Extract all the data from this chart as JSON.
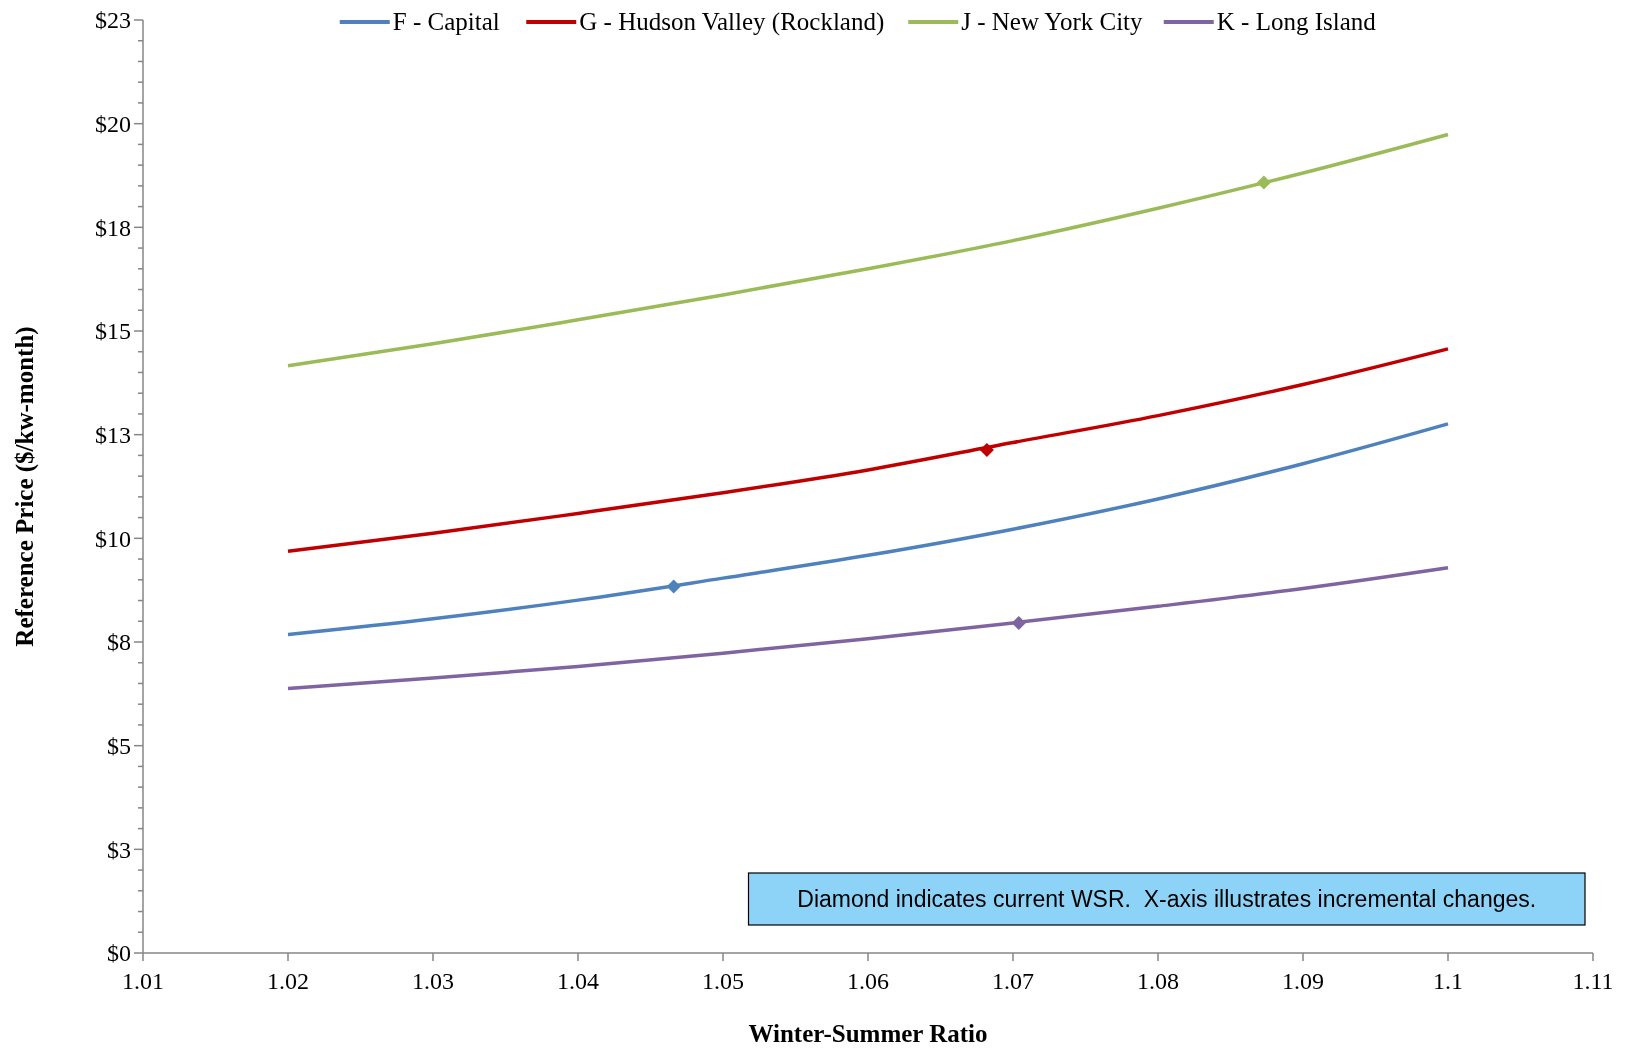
{
  "chart_data": {
    "type": "line",
    "xlabel": "Winter-Summer Ratio",
    "ylabel": "Reference Price ($/kw-month)",
    "x": [
      1.02,
      1.03,
      1.04,
      1.05,
      1.06,
      1.07,
      1.08,
      1.09,
      1.1
    ],
    "series": [
      {
        "name": "F - Capital",
        "color": "#4f81bd",
        "values": [
          7.68,
          8.06,
          8.51,
          9.04,
          9.59,
          10.22,
          10.95,
          11.8,
          12.76
        ]
      },
      {
        "name": "G - Hudson Valley (Rockland)",
        "color": "#c00000",
        "values": [
          9.69,
          10.12,
          10.6,
          11.1,
          11.65,
          12.31,
          12.96,
          13.71,
          14.57
        ]
      },
      {
        "name": "J - New York City",
        "color": "#9bbb59",
        "values": [
          14.16,
          14.69,
          15.27,
          15.87,
          16.5,
          17.18,
          17.96,
          18.81,
          19.74
        ]
      },
      {
        "name": "K - Long Island",
        "color": "#8064a2",
        "values": [
          6.38,
          6.63,
          6.91,
          7.23,
          7.58,
          7.96,
          8.36,
          8.79,
          9.29
        ]
      },
      {
        "type": "scatter",
        "marker": "diamond",
        "color": "#4f81bd",
        "x": [
          1.0466
        ],
        "values": [
          8.84
        ]
      },
      {
        "type": "scatter",
        "marker": "diamond",
        "color": "#c00000",
        "x": [
          1.0682
        ],
        "values": [
          12.13
        ]
      },
      {
        "type": "scatter",
        "marker": "diamond",
        "color": "#9bbb59",
        "x": [
          1.0873
        ],
        "values": [
          18.58
        ]
      },
      {
        "type": "scatter",
        "marker": "diamond",
        "color": "#8064a2",
        "x": [
          1.0704
        ],
        "values": [
          7.96
        ]
      }
    ],
    "xlim": [
      1.01,
      1.11
    ],
    "xticks": [
      1.01,
      1.02,
      1.03,
      1.04,
      1.05,
      1.06,
      1.07,
      1.08,
      1.09,
      1.1,
      1.11
    ],
    "ylim": [
      0,
      22.5
    ],
    "yticks": [
      {
        "value": 0,
        "label": "$0"
      },
      {
        "value": 0.5,
        "label": null
      },
      {
        "value": 1,
        "label": null
      },
      {
        "value": 1.5,
        "label": null
      },
      {
        "value": 2,
        "label": null
      },
      {
        "value": 2.5,
        "label": "$3"
      },
      {
        "value": 3,
        "label": null
      },
      {
        "value": 3.5,
        "label": null
      },
      {
        "value": 4,
        "label": null
      },
      {
        "value": 4.5,
        "label": null
      },
      {
        "value": 5,
        "label": "$5"
      },
      {
        "value": 5.5,
        "label": null
      },
      {
        "value": 6,
        "label": null
      },
      {
        "value": 6.5,
        "label": null
      },
      {
        "value": 7,
        "label": null
      },
      {
        "value": 7.5,
        "label": "$8"
      },
      {
        "value": 8,
        "label": null
      },
      {
        "value": 8.5,
        "label": null
      },
      {
        "value": 9,
        "label": null
      },
      {
        "value": 9.5,
        "label": null
      },
      {
        "value": 10,
        "label": "$10"
      },
      {
        "value": 10.5,
        "label": null
      },
      {
        "value": 11,
        "label": null
      },
      {
        "value": 11.5,
        "label": null
      },
      {
        "value": 12,
        "label": null
      },
      {
        "value": 12.5,
        "label": "$13"
      },
      {
        "value": 13,
        "label": null
      },
      {
        "value": 13.5,
        "label": null
      },
      {
        "value": 14,
        "label": null
      },
      {
        "value": 14.5,
        "label": null
      },
      {
        "value": 15,
        "label": "$15"
      },
      {
        "value": 15.5,
        "label": null
      },
      {
        "value": 16,
        "label": null
      },
      {
        "value": 16.5,
        "label": null
      },
      {
        "value": 17,
        "label": null
      },
      {
        "value": 17.5,
        "label": "$18"
      },
      {
        "value": 18,
        "label": null
      },
      {
        "value": 18.5,
        "label": null
      },
      {
        "value": 19,
        "label": null
      },
      {
        "value": 19.5,
        "label": null
      },
      {
        "value": 20,
        "label": "$20"
      },
      {
        "value": 20.5,
        "label": null
      },
      {
        "value": 21,
        "label": null
      },
      {
        "value": 21.5,
        "label": null
      },
      {
        "value": 22,
        "label": null
      },
      {
        "value": 22.5,
        "label": "$23"
      }
    ],
    "legend": "top",
    "line_style": "solid",
    "annotations": [
      "Diamond indicates current WSR.  X-axis illustrates incremental changes."
    ]
  }
}
